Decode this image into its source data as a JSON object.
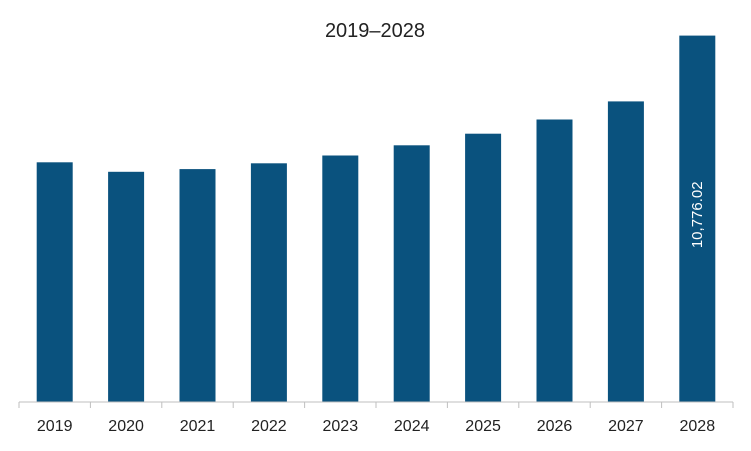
{
  "chart_data": {
    "type": "bar",
    "title": "2019–2028",
    "xlabel": "",
    "ylabel": "",
    "categories": [
      "2019",
      "2020",
      "2021",
      "2022",
      "2023",
      "2024",
      "2025",
      "2026",
      "2027",
      "2028"
    ],
    "values": [
      7050,
      6770,
      6850,
      7020,
      7250,
      7550,
      7890,
      8310,
      8840,
      10776.02
    ],
    "data_labels": [
      "",
      "",
      "",
      "",
      "",
      "",
      "",
      "",
      "",
      "10,776.02"
    ],
    "ylim": [
      0,
      11000
    ],
    "grid": false,
    "legend": "none",
    "colors": {
      "bar": "#0a527e",
      "axis": "#bfbfbf",
      "text": "#222222",
      "label": "#ffffff"
    }
  }
}
